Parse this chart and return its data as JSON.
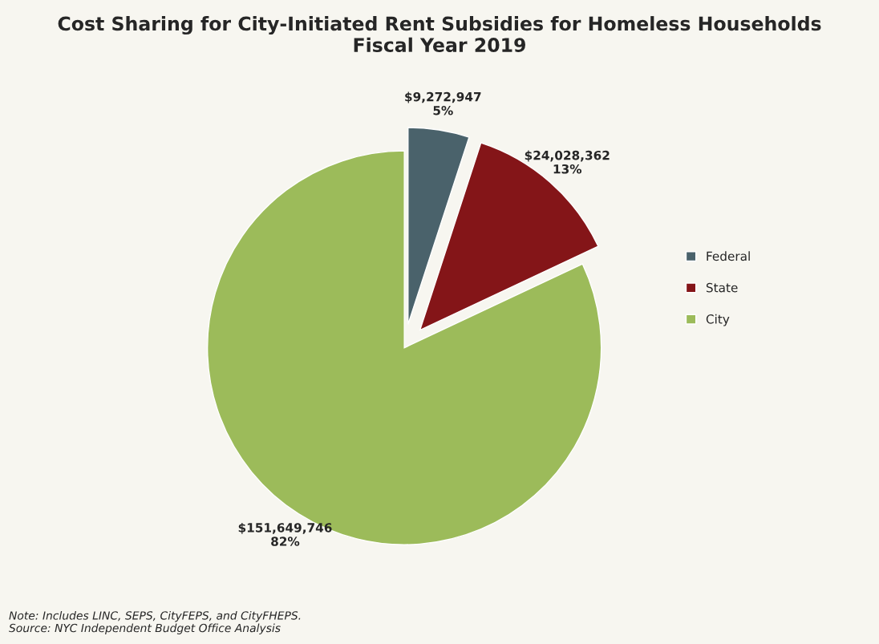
{
  "chart_data": {
    "type": "pie",
    "title": "Cost Sharing for City-Initiated Rent Subsidies for Homeless Households\nFiscal Year 2019",
    "categories": [
      "Federal",
      "State",
      "City"
    ],
    "values": [
      9272947,
      24028362,
      151649746
    ],
    "colors": [
      "#4a626b",
      "#841518",
      "#9cbb5a"
    ],
    "value_labels": [
      "$9,272,947\n5%",
      "$24,028,362\n13%",
      "$151,649,746\n82%"
    ],
    "legend": "right",
    "annotations": [
      "Note: Includes LINC, SEPS, CityFEPS, and CityFHEPS.\nSource: NYC Independent Budget Office Analysis"
    ]
  }
}
